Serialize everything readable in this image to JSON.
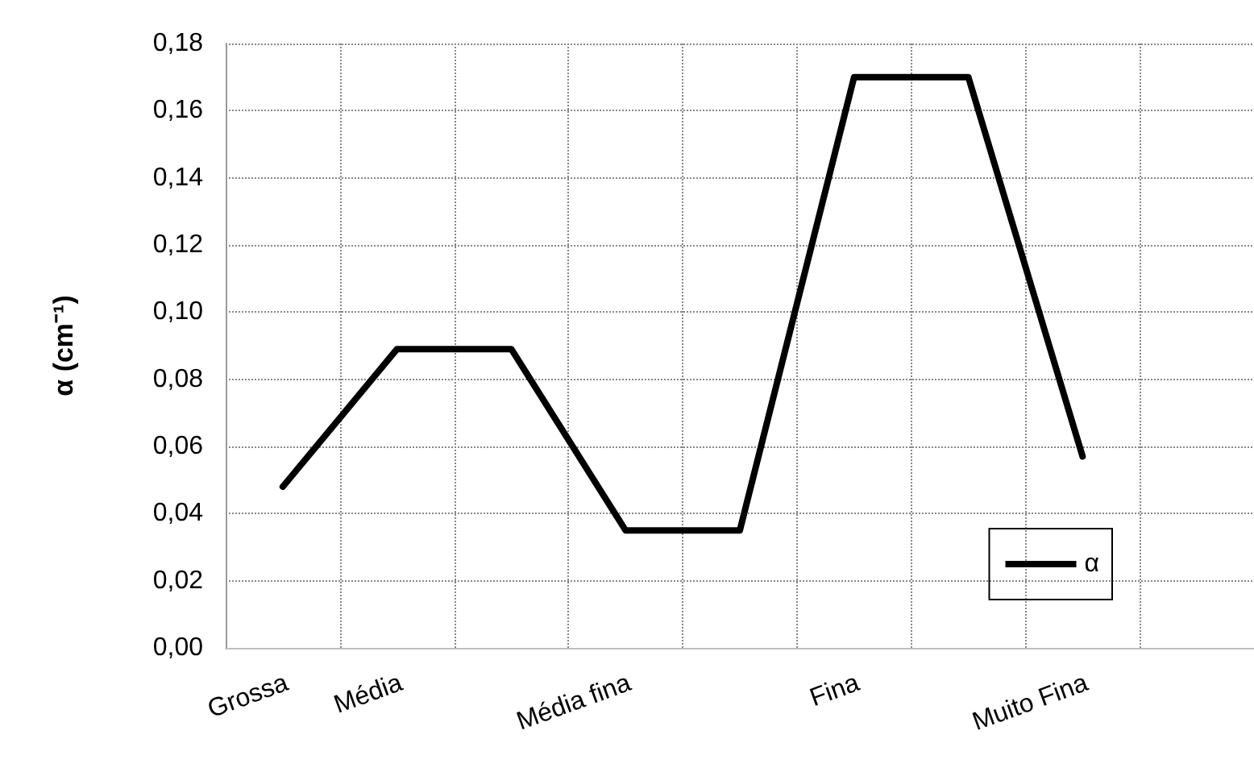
{
  "chart_data": {
    "type": "line",
    "ylabel": "α (cm⁻¹)",
    "categories": [
      "Grossa",
      "Média",
      null,
      "Média fina",
      null,
      "Fina",
      null,
      "Muito Fina",
      null
    ],
    "series": [
      {
        "name": "α",
        "color": "#000000",
        "values": [
          0.048,
          0.089,
          0.089,
          0.035,
          0.035,
          0.17,
          0.17,
          0.057,
          null
        ]
      }
    ],
    "ylim": [
      0,
      0.18
    ],
    "yticks": [
      {
        "value": 0,
        "label": "0,00"
      },
      {
        "value": 0.02,
        "label": "0,02"
      },
      {
        "value": 0.04,
        "label": "0,04"
      },
      {
        "value": 0.06,
        "label": "0,06"
      },
      {
        "value": 0.08,
        "label": "0,08"
      },
      {
        "value": 0.1,
        "label": "0,10"
      },
      {
        "value": 0.12,
        "label": "0,12"
      },
      {
        "value": 0.14,
        "label": "0,14"
      },
      {
        "value": 0.16,
        "label": "0,16"
      },
      {
        "value": 0.18,
        "label": "0,18"
      }
    ],
    "grid": true,
    "legend": "bottom right",
    "marker": "none",
    "line_style": "solid"
  }
}
